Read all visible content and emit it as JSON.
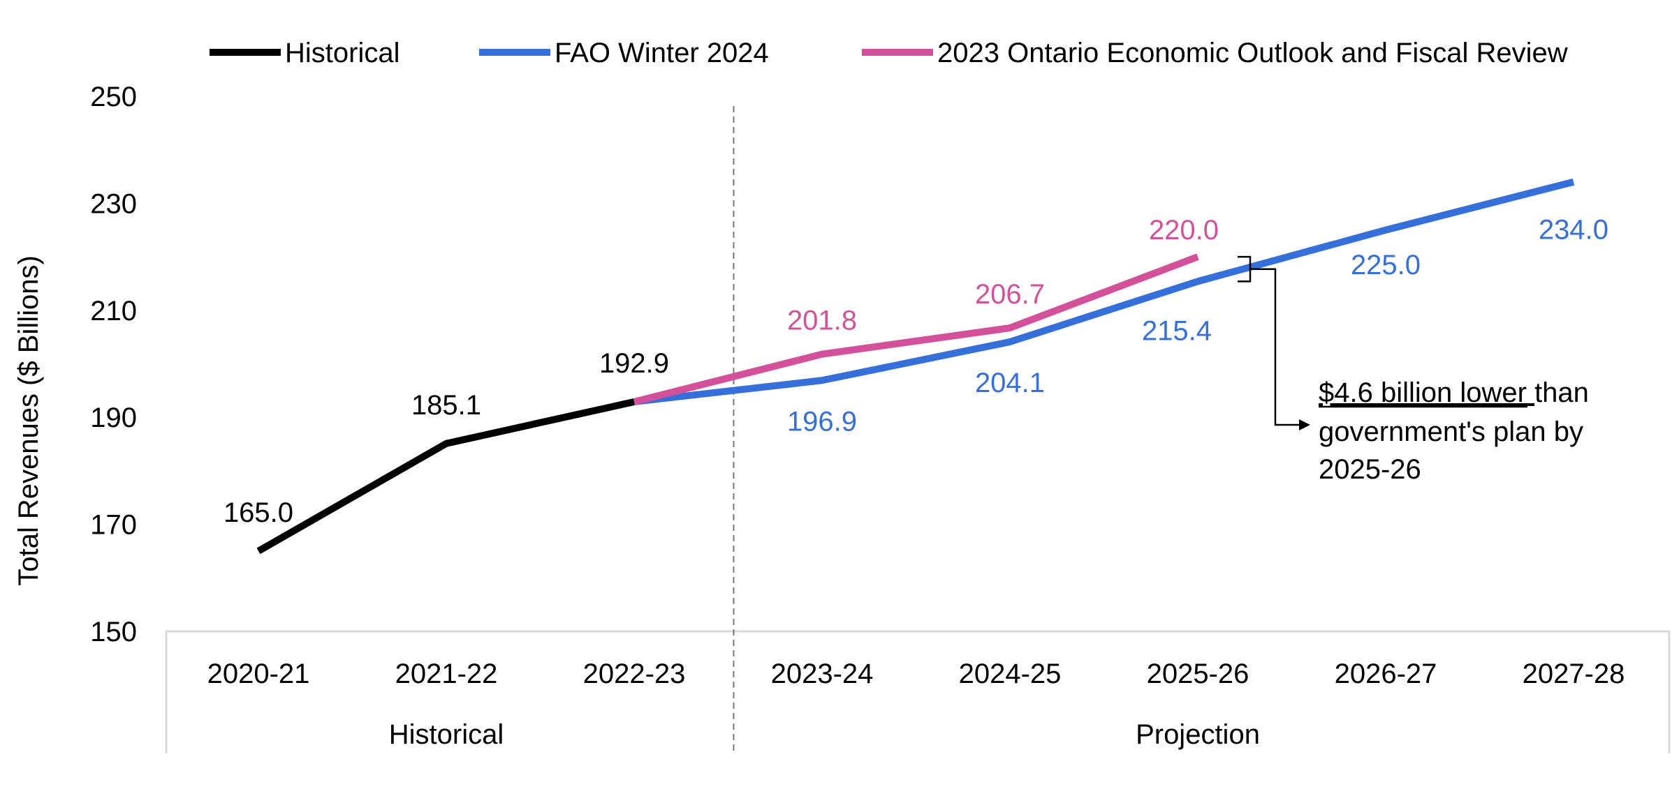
{
  "chart_data": {
    "type": "line",
    "ylabel": "Total Revenues ($ Billions)",
    "ylim": [
      150,
      250
    ],
    "yticks": [
      "150",
      "170",
      "190",
      "210",
      "230",
      "250"
    ],
    "categories": [
      "2020-21",
      "2021-22",
      "2022-23",
      "2023-24",
      "2024-25",
      "2025-26",
      "2026-27",
      "2027-28"
    ],
    "groups": [
      {
        "label": "Historical",
        "span": [
          "2020-21",
          "2022-23"
        ]
      },
      {
        "label": "Projection",
        "span": [
          "2023-24",
          "2027-28"
        ]
      }
    ],
    "legend_position": "top",
    "series": [
      {
        "name": "Historical",
        "color": "#000000",
        "points": [
          [
            "2020-21",
            165.0
          ],
          [
            "2021-22",
            185.1
          ],
          [
            "2022-23",
            192.9
          ]
        ],
        "labels": [
          "165.0",
          "185.1",
          "192.9"
        ]
      },
      {
        "name": "FAO Winter 2024",
        "color": "#356FDB",
        "points": [
          [
            "2022-23",
            192.9
          ],
          [
            "2023-24",
            196.9
          ],
          [
            "2024-25",
            204.1
          ],
          [
            "2025-26",
            215.4
          ],
          [
            "2026-27",
            225.0
          ],
          [
            "2027-28",
            234.0
          ]
        ],
        "labels": [
          "",
          "196.9",
          "204.1",
          "215.4",
          "225.0",
          "234.0"
        ]
      },
      {
        "name": "2023 Ontario Economic Outlook and Fiscal Review",
        "color": "#D4509A",
        "points": [
          [
            "2022-23",
            192.9
          ],
          [
            "2023-24",
            201.8
          ],
          [
            "2024-25",
            206.7
          ],
          [
            "2025-26",
            220.0
          ]
        ],
        "labels": [
          "",
          "201.8",
          "206.7",
          "220.0"
        ]
      }
    ],
    "annotation": {
      "underlined": "$4.6 billion lower ",
      "line1_rest": "than",
      "line2": "government's plan by",
      "line3": "2025-26"
    }
  }
}
